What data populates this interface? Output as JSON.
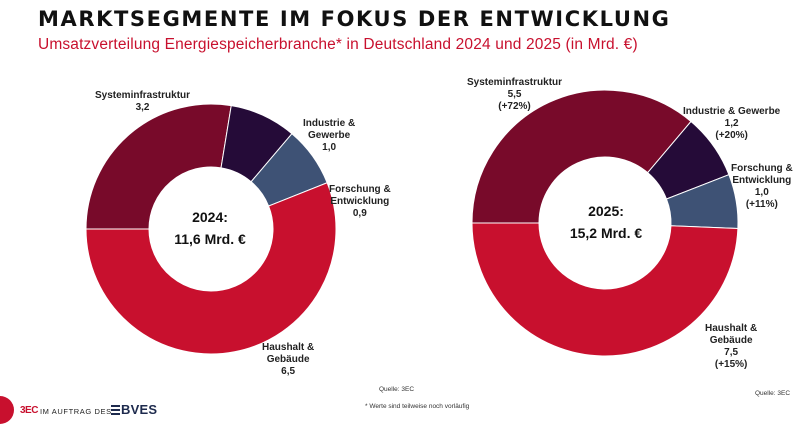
{
  "header": {
    "title": "MARKTSEGMENTE IM FOKUS DER ENTWICKLUNG",
    "subtitle": "Umsatzverteilung Energiespeicherbranche* in Deutschland 2024 und 2025 (in Mrd. €)"
  },
  "colors": {
    "systeminfrastruktur": "#780a2a",
    "industrie": "#250b38",
    "forschung": "#3e5275",
    "haushalt": "#c8102e",
    "accent": "#c8102e"
  },
  "chart_data": [
    {
      "type": "pie",
      "title": "2024:",
      "total_label": "11,6 Mrd. €",
      "source": "Quelle: 3EC",
      "slices": [
        {
          "key": "systeminfrastruktur",
          "name": "Systeminfrastruktur",
          "value": 3.2,
          "value_label": "3,2",
          "change_label": ""
        },
        {
          "key": "industrie",
          "name": "Industrie & Gewerbe",
          "value": 1.0,
          "value_label": "1,0",
          "change_label": ""
        },
        {
          "key": "forschung",
          "name": "Forschung & Entwicklung",
          "value": 0.9,
          "value_label": "0,9",
          "change_label": ""
        },
        {
          "key": "haushalt",
          "name": "Haushalt & Gebäude",
          "value": 6.5,
          "value_label": "6,5",
          "change_label": ""
        }
      ]
    },
    {
      "type": "pie",
      "title": "2025:",
      "total_label": "15,2 Mrd. €",
      "source": "Quelle: 3EC",
      "slices": [
        {
          "key": "systeminfrastruktur",
          "name": "Systeminfrastruktur",
          "value": 5.5,
          "value_label": "5,5",
          "change_label": "(+72%)"
        },
        {
          "key": "industrie",
          "name": "Industrie & Gewerbe",
          "value": 1.2,
          "value_label": "1,2",
          "change_label": "(+20%)"
        },
        {
          "key": "forschung",
          "name": "Forschung & Entwicklung",
          "value": 1.0,
          "value_label": "1,0",
          "change_label": "(+11%)"
        },
        {
          "key": "haushalt",
          "name": "Haushalt & Gebäude",
          "value": 7.5,
          "value_label": "7,5",
          "change_label": "(+15%)"
        }
      ]
    }
  ],
  "labels": {
    "c1_systeminfrastruktur": "Systeminfrastruktur",
    "c1_industrie_line1": "Industrie &",
    "c1_industrie_line2": "Gewerbe",
    "c1_forschung_line1": "Forschung &",
    "c1_forschung_line2": "Entwicklung",
    "c1_haushalt_line1": "Haushalt &",
    "c1_haushalt_line2": "Gebäude",
    "c2_systeminfrastruktur": "Systeminfrastruktur",
    "c2_industrie": "Industrie & Gewerbe",
    "c2_forschung_line1": "Forschung &",
    "c2_forschung_line2": "Entwicklung",
    "c2_haushalt_line1": "Haushalt &",
    "c2_haushalt_line2": "Gebäude"
  },
  "footer": {
    "footnote": "* Werte sind teilweise noch vorläufig",
    "logo_text": "3EC",
    "auftrag": "IM AUFTRAG DES",
    "bves": "BVES"
  }
}
